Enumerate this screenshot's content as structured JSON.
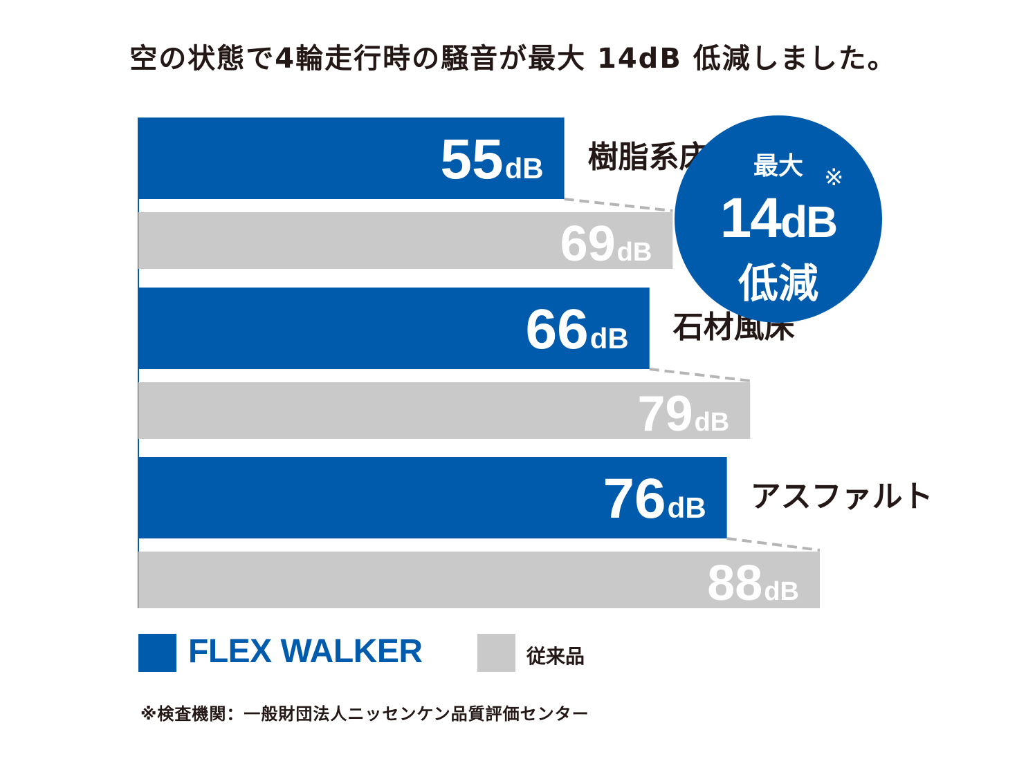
{
  "title": "空の状態で4輪走行時の騒音が最大 14dB 低減しました。",
  "chart_data": {
    "type": "bar",
    "orientation": "horizontal",
    "categories": [
      "樹脂系床",
      "石材風床",
      "アスファルト"
    ],
    "unit": "dB",
    "series": [
      {
        "name": "FLEX WALKER",
        "color": "#005bac",
        "values": [
          55,
          66,
          76
        ]
      },
      {
        "name": "従来品",
        "color": "#c9c9c9",
        "values": [
          69,
          79,
          88
        ]
      }
    ],
    "xlim": [
      0,
      88
    ],
    "grid": false,
    "legend_position": "bottom-left",
    "value_labels": [
      "55",
      "69",
      "66",
      "79",
      "76",
      "88"
    ]
  },
  "badge": {
    "line1": "最大",
    "mark": "※",
    "value": "14",
    "unit": "dB",
    "line3": "低減"
  },
  "legend": {
    "items": [
      {
        "label": "FLEX WALKER",
        "color": "#005bac"
      },
      {
        "label": "従来品",
        "color": "#c9c9c9"
      }
    ]
  },
  "footnote": "※検査機関：一般財団法人ニッセンケン品質評価センター"
}
